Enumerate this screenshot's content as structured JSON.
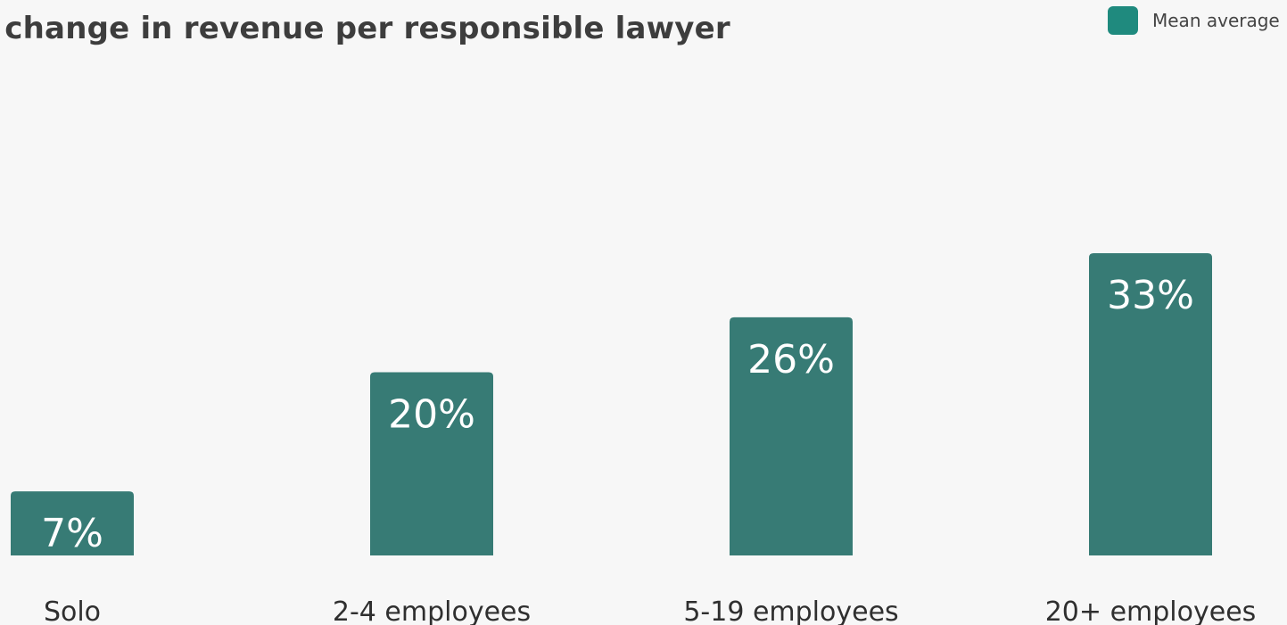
{
  "chart_data": {
    "type": "bar",
    "title": "e change in revenue per responsible lawyer",
    "categories": [
      "Solo",
      "2-4 employees",
      "5-19 employees",
      "20+ employees"
    ],
    "series": [
      {
        "name": "Mean average",
        "values": [
          7,
          20,
          26,
          33
        ],
        "labels": [
          "7%",
          "20%",
          "26%",
          "33%"
        ],
        "color": "#377b75"
      }
    ],
    "legend": {
      "label": "Mean average",
      "position": "top-right",
      "swatch_color": "#1f8a7e"
    },
    "ylim": [
      0,
      35
    ],
    "grid": false,
    "xlabel": "",
    "ylabel": ""
  }
}
